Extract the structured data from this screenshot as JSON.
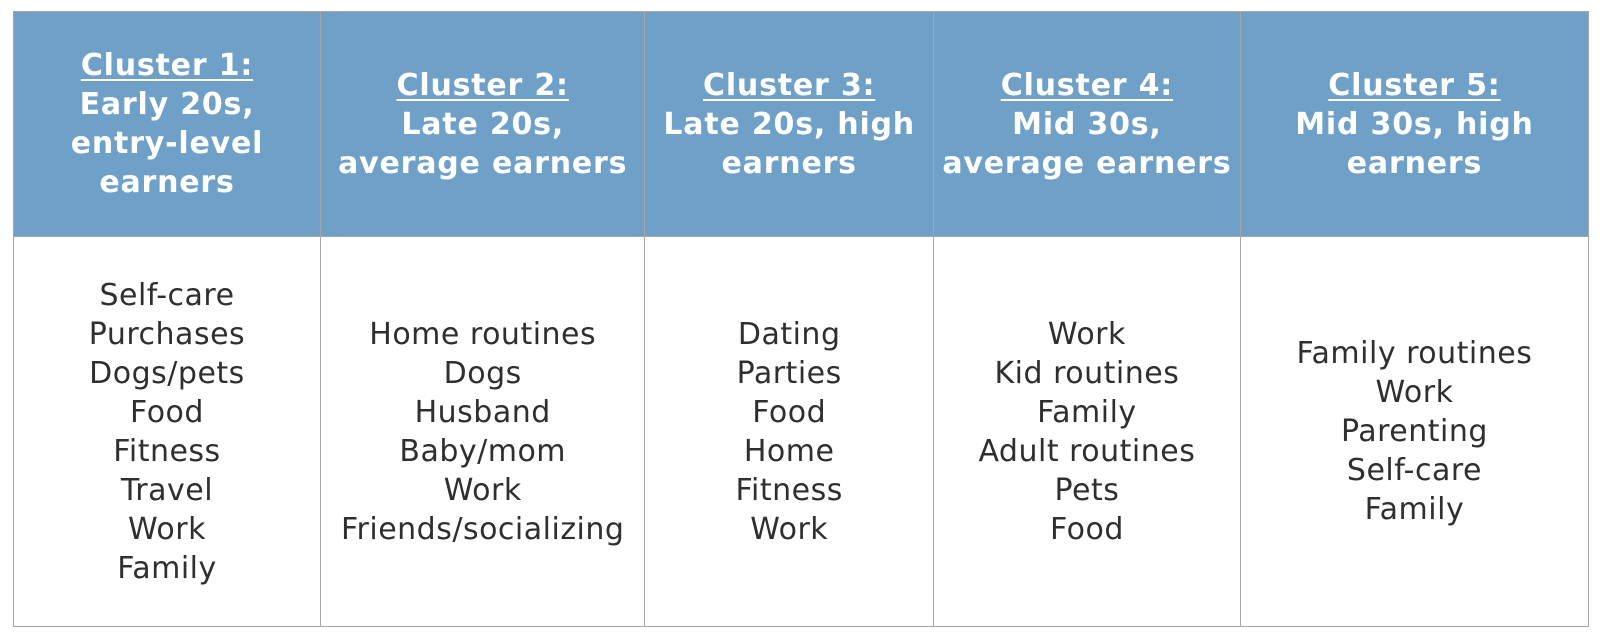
{
  "clusters": [
    {
      "title": "Cluster 1:",
      "desc_lines": [
        "Early 20s,",
        "entry-level",
        "earners"
      ],
      "topics": [
        "Self-care",
        "Purchases",
        "Dogs/pets",
        "Food",
        "Fitness",
        "Travel",
        "Work",
        "Family"
      ]
    },
    {
      "title": "Cluster 2:",
      "desc_lines": [
        "Late 20s,",
        "average earners"
      ],
      "topics": [
        "Home routines",
        "Dogs",
        "Husband",
        "Baby/mom",
        "Work",
        "Friends/socializing"
      ]
    },
    {
      "title": "Cluster 3:",
      "desc_lines": [
        "Late 20s, high",
        "earners"
      ],
      "topics": [
        "Dating",
        "Parties",
        "Food",
        "Home",
        "Fitness",
        "Work"
      ]
    },
    {
      "title": "Cluster 4:",
      "desc_lines": [
        "Mid 30s,",
        "average earners"
      ],
      "topics": [
        "Work",
        "Kid routines",
        "Family",
        "Adult routines",
        "Pets",
        "Food"
      ]
    },
    {
      "title": "Cluster 5:",
      "desc_lines": [
        "Mid 30s, high",
        "earners"
      ],
      "topics": [
        "Family routines",
        "Work",
        "Parenting",
        "Self-care",
        "Family"
      ]
    }
  ],
  "colors": {
    "header_bg": "#6fa0c8",
    "header_text": "#ffffff",
    "body_text": "#2f2f2f",
    "border": "#a6a6a6"
  }
}
